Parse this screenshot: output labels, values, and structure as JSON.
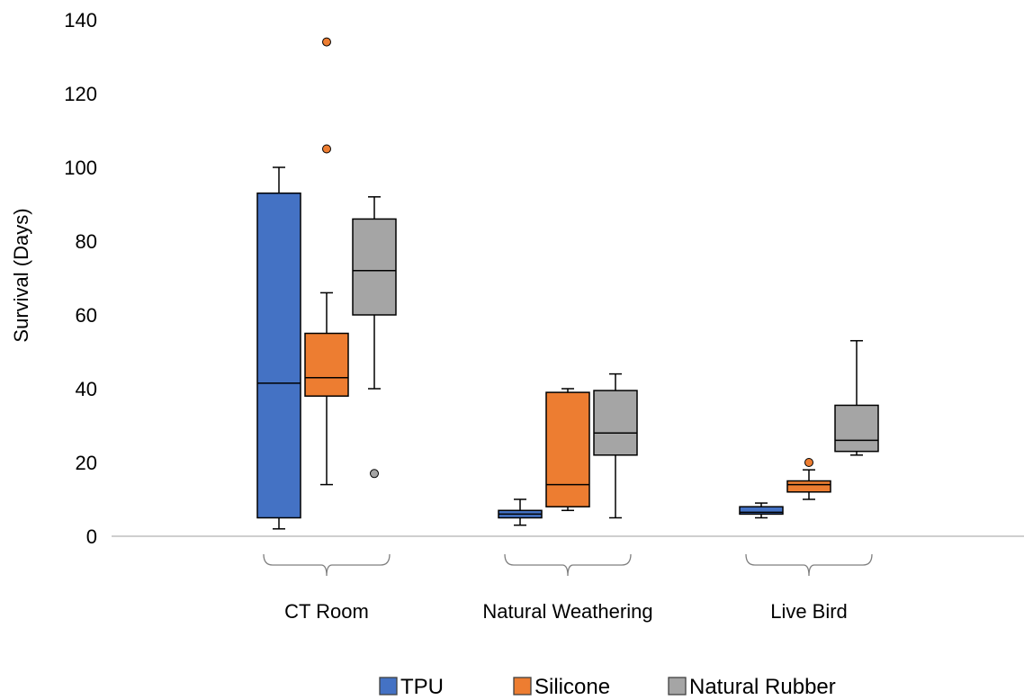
{
  "chart_data": {
    "type": "box",
    "ylabel": "Survival (Days)",
    "ylim": [
      0,
      140
    ],
    "yticks": [
      0,
      20,
      40,
      60,
      80,
      100,
      120,
      140
    ],
    "grid": false,
    "legend_position": "bottom",
    "categories": [
      "CT Room",
      "Natural Weathering",
      "Live Bird"
    ],
    "series": [
      {
        "name": "TPU",
        "color": "#4472C4",
        "boxes": [
          {
            "min": 2,
            "q1": 5,
            "median": 41.5,
            "q3": 93,
            "max": 100,
            "outliers": []
          },
          {
            "min": 3,
            "q1": 5,
            "median": 6,
            "q3": 7,
            "max": 10,
            "outliers": []
          },
          {
            "min": 5,
            "q1": 6,
            "median": 6.5,
            "q3": 8,
            "max": 9,
            "outliers": []
          }
        ]
      },
      {
        "name": "Silicone",
        "color": "#ED7D31",
        "boxes": [
          {
            "min": 14,
            "q1": 38,
            "median": 43,
            "q3": 55,
            "max": 66,
            "outliers": [
              105,
              134
            ]
          },
          {
            "min": 7,
            "q1": 8,
            "median": 14,
            "q3": 39,
            "max": 40,
            "outliers": []
          },
          {
            "min": 10,
            "q1": 12,
            "median": 14,
            "q3": 15,
            "max": 18,
            "outliers": [
              20
            ]
          }
        ]
      },
      {
        "name": "Natural Rubber",
        "color": "#A5A5A5",
        "boxes": [
          {
            "min": 40,
            "q1": 60,
            "median": 72,
            "q3": 86,
            "max": 92,
            "outliers": [
              17
            ]
          },
          {
            "min": 5,
            "q1": 22,
            "median": 28,
            "q3": 39.5,
            "max": 44,
            "outliers": []
          },
          {
            "min": 22,
            "q1": 23,
            "median": 26,
            "q3": 35.5,
            "max": 53,
            "outliers": []
          }
        ]
      }
    ]
  }
}
